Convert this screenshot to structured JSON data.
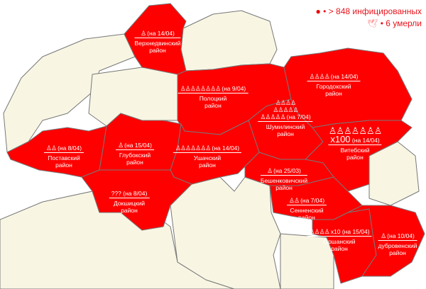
{
  "legend": {
    "infected_text": "> 848 инфицированных",
    "infected_icon": "virus-icon",
    "dead_text": "6 умерли",
    "dead_icon": "dove-icon",
    "bullet": "•"
  },
  "colors": {
    "affected": "#ff0000",
    "unaffected": "#f8f6e3",
    "border": "#777777",
    "legend_text": "#e8141c"
  },
  "person_icon": "person-icon",
  "districts": [
    {
      "id": "verkhnedvinsk",
      "name": "Верхнедвинский",
      "suffix": "район",
      "icons": 1,
      "multiplier": "",
      "date": "(на 14/04)"
    },
    {
      "id": "polotsk",
      "name": "Полоцкий",
      "suffix": "район",
      "icons": 8,
      "multiplier": "",
      "date": "(на 9/04)"
    },
    {
      "id": "gorodok",
      "name": "Городокский",
      "suffix": "район",
      "icons": 4,
      "multiplier": "",
      "date": "(на 14/04)"
    },
    {
      "id": "shumilino",
      "name": "Шумилинский",
      "suffix": "район",
      "icons": 14,
      "multiplier": "",
      "date": "(на 7/04)"
    },
    {
      "id": "vitebsk",
      "name": "Витебский",
      "suffix": "район",
      "icons": 7,
      "multiplier": "x100",
      "date": "(на 14/04)"
    },
    {
      "id": "postavy",
      "name": "Поставский",
      "suffix": "район",
      "icons": 2,
      "multiplier": "",
      "date": "(на 8/04)"
    },
    {
      "id": "glubokoe",
      "name": "Глубокский",
      "suffix": "район",
      "icons": 1,
      "multiplier": "",
      "date": "(на 15/04)"
    },
    {
      "id": "ushachi",
      "name": "Ушачский",
      "suffix": "район",
      "icons": 7,
      "multiplier": "",
      "date": "(на 14/04)"
    },
    {
      "id": "beshenkovichi",
      "name": "Бешенковичский",
      "suffix": "район",
      "icons": 1,
      "multiplier": "",
      "date": "(на 25/03)"
    },
    {
      "id": "dokshitsy",
      "name": "Докшицкий",
      "suffix": "район",
      "icons": 0,
      "multiplier": "???",
      "date": "(на 8/04)"
    },
    {
      "id": "senno",
      "name": "Сенненский",
      "suffix": "район",
      "icons": 2,
      "multiplier": "",
      "date": "(на 7/04)"
    },
    {
      "id": "orsha",
      "name": "Оршанский",
      "suffix": "район",
      "icons": 4,
      "multiplier": "x10",
      "date": "(на 15/04)"
    },
    {
      "id": "dubrovno",
      "name": "дубровенский",
      "suffix": "район",
      "icons": 1,
      "multiplier": "",
      "date": "(на 10/04)"
    }
  ]
}
